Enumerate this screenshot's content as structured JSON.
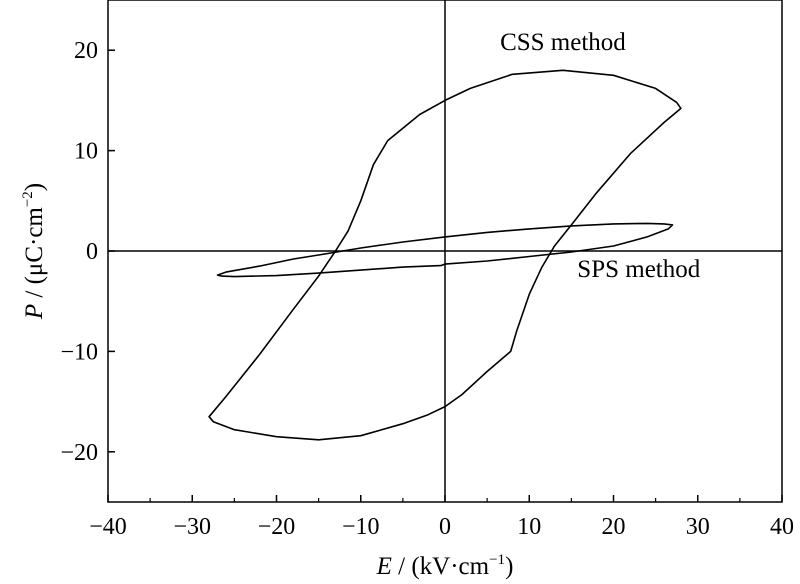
{
  "chart_data": {
    "type": "line",
    "title": "",
    "xlabel": {
      "var": "E",
      "unit_prefix": " / (kV·cm",
      "sup": "−1",
      "unit_suffix": ")"
    },
    "ylabel": {
      "var": "P",
      "unit_prefix": " / (μC·cm",
      "sup": "−2",
      "unit_suffix": ")"
    },
    "xlim": [
      -40,
      40
    ],
    "ylim": [
      -25,
      25
    ],
    "x_ticks": [
      -40,
      -30,
      -20,
      -10,
      0,
      10,
      20,
      30,
      40
    ],
    "x_tick_labels": [
      "−40",
      "−30",
      "−20",
      "−10",
      "0",
      "10",
      "20",
      "30",
      "40"
    ],
    "y_ticks": [
      -20,
      -10,
      0,
      10,
      20
    ],
    "y_tick_labels": [
      "−20",
      "−10",
      "0",
      "10",
      "20"
    ],
    "grid": false,
    "zero_lines": true,
    "series": [
      {
        "name": "CSS method",
        "color": "#000000",
        "x": [
          28,
          27.5,
          25,
          20,
          14,
          8,
          3,
          0,
          -3,
          -6.8,
          -8.5,
          -10,
          -11.5,
          -13,
          -15,
          -18,
          -22,
          -26,
          -28,
          -27.5,
          -25,
          -20,
          -15,
          -10,
          -5,
          -2,
          0,
          2,
          5,
          7.8,
          8.5,
          10,
          11.5,
          13,
          15,
          18,
          22,
          26,
          28
        ],
        "y": [
          14.2,
          14.8,
          16.2,
          17.5,
          18.0,
          17.6,
          16.2,
          15.0,
          13.6,
          11.0,
          8.6,
          5.0,
          2.0,
          0,
          -2.5,
          -5.8,
          -10.3,
          -14.5,
          -16.5,
          -17.0,
          -17.8,
          -18.5,
          -18.8,
          -18.4,
          -17.2,
          -16.3,
          -15.5,
          -14.3,
          -12.0,
          -10.0,
          -8.0,
          -4.3,
          -1.6,
          0.5,
          2.6,
          5.8,
          9.7,
          12.8,
          14.2
        ]
      },
      {
        "name": "SPS method",
        "color": "#000000",
        "x": [
          27,
          26,
          24,
          20,
          15,
          10,
          5,
          0,
          -5,
          -10,
          -15,
          -18,
          -22,
          -26,
          -27,
          -26.5,
          -25,
          -20,
          -15,
          -10,
          -5,
          -0.5,
          0,
          5,
          10,
          15,
          20,
          24,
          26.5,
          27
        ],
        "y": [
          2.6,
          2.7,
          2.75,
          2.7,
          2.5,
          2.2,
          1.85,
          1.4,
          0.9,
          0.3,
          -0.4,
          -0.8,
          -1.5,
          -2.1,
          -2.4,
          -2.5,
          -2.55,
          -2.45,
          -2.2,
          -1.9,
          -1.6,
          -1.45,
          -1.3,
          -1.0,
          -0.55,
          -0.1,
          0.5,
          1.4,
          2.2,
          2.6
        ]
      }
    ],
    "annotations": [
      {
        "text": "CSS method",
        "x": 14,
        "y": 20
      },
      {
        "text": "SPS method",
        "x": 23,
        "y": -2.6
      }
    ]
  }
}
